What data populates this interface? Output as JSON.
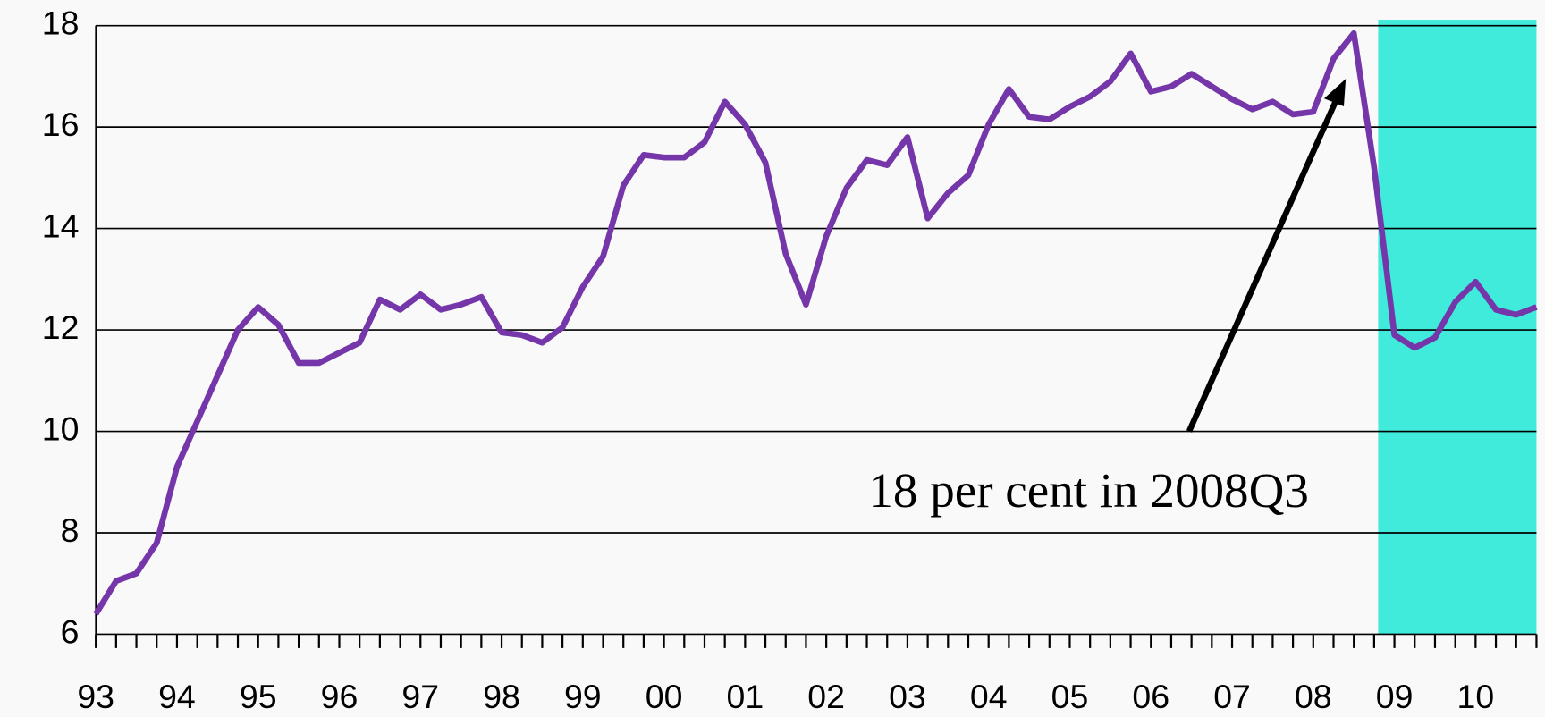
{
  "chart_data": {
    "type": "line",
    "categories": [
      "93",
      null,
      null,
      null,
      "94",
      null,
      null,
      null,
      "95",
      null,
      null,
      null,
      "96",
      null,
      null,
      null,
      "97",
      null,
      null,
      null,
      "98",
      null,
      null,
      null,
      "99",
      null,
      null,
      null,
      "00",
      null,
      null,
      null,
      "01",
      null,
      null,
      null,
      "02",
      null,
      null,
      null,
      "03",
      null,
      null,
      null,
      "04",
      null,
      null,
      null,
      "05",
      null,
      null,
      null,
      "06",
      null,
      null,
      null,
      "07",
      null,
      null,
      null,
      "08",
      null,
      null,
      null,
      "09",
      null,
      null,
      null,
      "10",
      null,
      null,
      null
    ],
    "series": [
      {
        "color": "#7436a8",
        "values": [
          6.4,
          7.05,
          7.2,
          7.8,
          9.3,
          10.2,
          11.1,
          12.0,
          12.45,
          12.1,
          11.35,
          11.35,
          11.55,
          11.75,
          12.6,
          12.4,
          12.7,
          12.4,
          12.5,
          12.65,
          11.95,
          11.9,
          11.75,
          12.05,
          12.85,
          13.45,
          14.85,
          15.45,
          15.4,
          15.4,
          15.7,
          16.5,
          16.05,
          15.3,
          13.5,
          12.5,
          13.85,
          14.8,
          15.35,
          15.25,
          15.8,
          14.2,
          14.7,
          15.05,
          16.05,
          16.75,
          16.2,
          16.15,
          16.4,
          16.6,
          16.9,
          17.45,
          16.7,
          16.8,
          17.05,
          16.8,
          16.55,
          16.35,
          16.5,
          16.25,
          16.3,
          17.35,
          17.85,
          15.2,
          11.9,
          11.65,
          11.85,
          12.55,
          12.95,
          12.4,
          12.3,
          12.45
        ]
      }
    ],
    "ylim": [
      6,
      18
    ],
    "yticks": [
      6,
      8,
      10,
      12,
      14,
      16,
      18
    ],
    "grid": true,
    "shaded_region": {
      "start": 63.2,
      "end": 71,
      "color": "#40ebdb"
    },
    "annotation": "18 per cent in 2008Q3"
  }
}
